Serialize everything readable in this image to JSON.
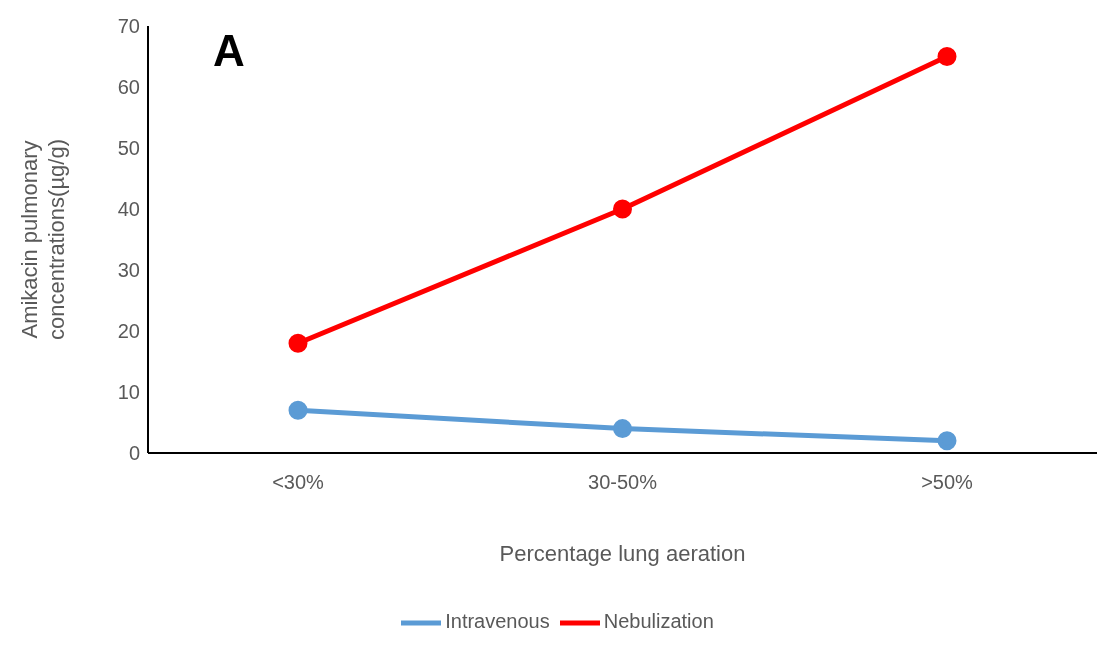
{
  "chart_data": {
    "type": "line",
    "xlabel": "Percentage lung aeration",
    "ylabel": "Amikacin pulmonary concentrations(µg/g)",
    "annotations": [
      "A"
    ],
    "categories": [
      "<30%",
      "30-50%",
      ">50%"
    ],
    "series": [
      {
        "name": "Intravenous",
        "color": "#5b9bd5",
        "values": [
          7,
          4,
          2
        ]
      },
      {
        "name": "Nebulization",
        "color": "#ff0000",
        "values": [
          18,
          40,
          65
        ]
      }
    ],
    "ylim": [
      0,
      70
    ],
    "yticks": [
      0,
      10,
      20,
      30,
      40,
      50,
      60,
      70
    ],
    "grid": false,
    "legend": "bottom",
    "marker": "circle",
    "line_style": "solid"
  }
}
